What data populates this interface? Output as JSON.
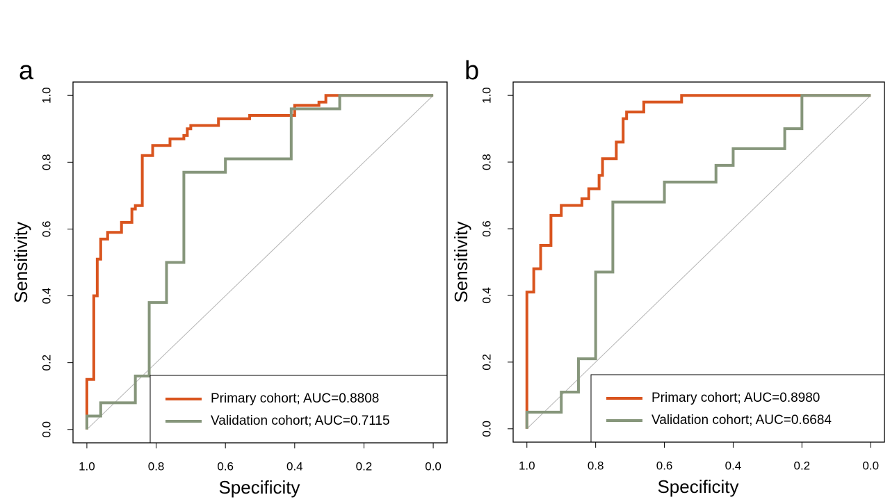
{
  "chart_data": [
    {
      "type": "line",
      "panel_label": "a",
      "xlabel": "Specificity",
      "ylabel": "Sensitivity",
      "xlim": [
        1.04,
        -0.04
      ],
      "ylim": [
        -0.04,
        1.04
      ],
      "xticks": [
        {
          "value": 1,
          "label": "1.0"
        },
        0.8,
        0.6,
        0.4,
        0.2,
        {
          "value": 0,
          "label": "0.0"
        }
      ],
      "yticks": [
        {
          "value": 0,
          "label": "0.0"
        },
        0.2,
        0.4,
        0.6,
        0.8,
        {
          "value": 1,
          "label": "1.0"
        }
      ],
      "diagonal": true,
      "legend": "lower right",
      "step": true,
      "series": [
        {
          "name": "Primary cohort;  AUC=0.8808",
          "color": "#d9541e",
          "x": [
            1,
            1,
            0.98,
            0.98,
            0.97,
            0.97,
            0.96,
            0.96,
            0.94,
            0.94,
            0.9,
            0.9,
            0.87,
            0.87,
            0.86,
            0.86,
            0.84,
            0.84,
            0.81,
            0.81,
            0.76,
            0.76,
            0.72,
            0.72,
            0.71,
            0.71,
            0.7,
            0.7,
            0.62,
            0.62,
            0.53,
            0.53,
            0.4,
            0.4,
            0.33,
            0.33,
            0.31,
            0.31,
            0
          ],
          "values": [
            0,
            0.15,
            0.15,
            0.4,
            0.4,
            0.51,
            0.51,
            0.57,
            0.57,
            0.59,
            0.59,
            0.62,
            0.62,
            0.66,
            0.66,
            0.67,
            0.67,
            0.82,
            0.82,
            0.85,
            0.85,
            0.87,
            0.87,
            0.88,
            0.88,
            0.9,
            0.9,
            0.91,
            0.91,
            0.93,
            0.93,
            0.94,
            0.94,
            0.97,
            0.97,
            0.98,
            0.98,
            1,
            1
          ]
        },
        {
          "name": "Validation cohort;  AUC=0.7115",
          "color": "#86967b",
          "x": [
            1,
            1,
            0.96,
            0.96,
            0.86,
            0.86,
            0.82,
            0.82,
            0.77,
            0.77,
            0.72,
            0.72,
            0.6,
            0.6,
            0.41,
            0.41,
            0.27,
            0.27,
            0
          ],
          "values": [
            0,
            0.04,
            0.04,
            0.08,
            0.08,
            0.16,
            0.16,
            0.38,
            0.38,
            0.5,
            0.5,
            0.77,
            0.77,
            0.81,
            0.81,
            0.96,
            0.96,
            1,
            1
          ]
        }
      ]
    },
    {
      "type": "line",
      "panel_label": "b",
      "xlabel": "Specificity",
      "ylabel": "Sensitivity",
      "xlim": [
        1.04,
        -0.04
      ],
      "ylim": [
        -0.04,
        1.04
      ],
      "xticks": [
        {
          "value": 1,
          "label": "1.0"
        },
        0.8,
        0.6,
        0.4,
        0.2,
        {
          "value": 0,
          "label": "0.0"
        }
      ],
      "yticks": [
        {
          "value": 0,
          "label": "0.0"
        },
        0.2,
        0.4,
        0.6,
        0.8,
        {
          "value": 1,
          "label": "1.0"
        }
      ],
      "diagonal": true,
      "legend": "lower right",
      "step": true,
      "series": [
        {
          "name": "Primary cohort;  AUC=0.8980",
          "color": "#d9541e",
          "x": [
            1,
            1,
            0.98,
            0.98,
            0.96,
            0.96,
            0.93,
            0.93,
            0.9,
            0.9,
            0.84,
            0.84,
            0.82,
            0.82,
            0.79,
            0.79,
            0.78,
            0.78,
            0.74,
            0.74,
            0.72,
            0.72,
            0.71,
            0.71,
            0.66,
            0.66,
            0.55,
            0.55,
            0
          ],
          "values": [
            0,
            0.41,
            0.41,
            0.48,
            0.48,
            0.55,
            0.55,
            0.64,
            0.64,
            0.67,
            0.67,
            0.69,
            0.69,
            0.72,
            0.72,
            0.76,
            0.76,
            0.81,
            0.81,
            0.86,
            0.86,
            0.93,
            0.93,
            0.95,
            0.95,
            0.98,
            0.98,
            1,
            1
          ]
        },
        {
          "name": "Validation cohort;  AUC=0.6684",
          "color": "#86967b",
          "x": [
            1,
            1,
            0.9,
            0.9,
            0.85,
            0.85,
            0.8,
            0.8,
            0.75,
            0.75,
            0.6,
            0.6,
            0.45,
            0.45,
            0.4,
            0.4,
            0.25,
            0.25,
            0.2,
            0.2,
            0
          ],
          "values": [
            0,
            0.05,
            0.05,
            0.11,
            0.11,
            0.21,
            0.21,
            0.47,
            0.47,
            0.68,
            0.68,
            0.74,
            0.74,
            0.79,
            0.79,
            0.84,
            0.84,
            0.9,
            0.9,
            1,
            1
          ]
        }
      ]
    }
  ]
}
